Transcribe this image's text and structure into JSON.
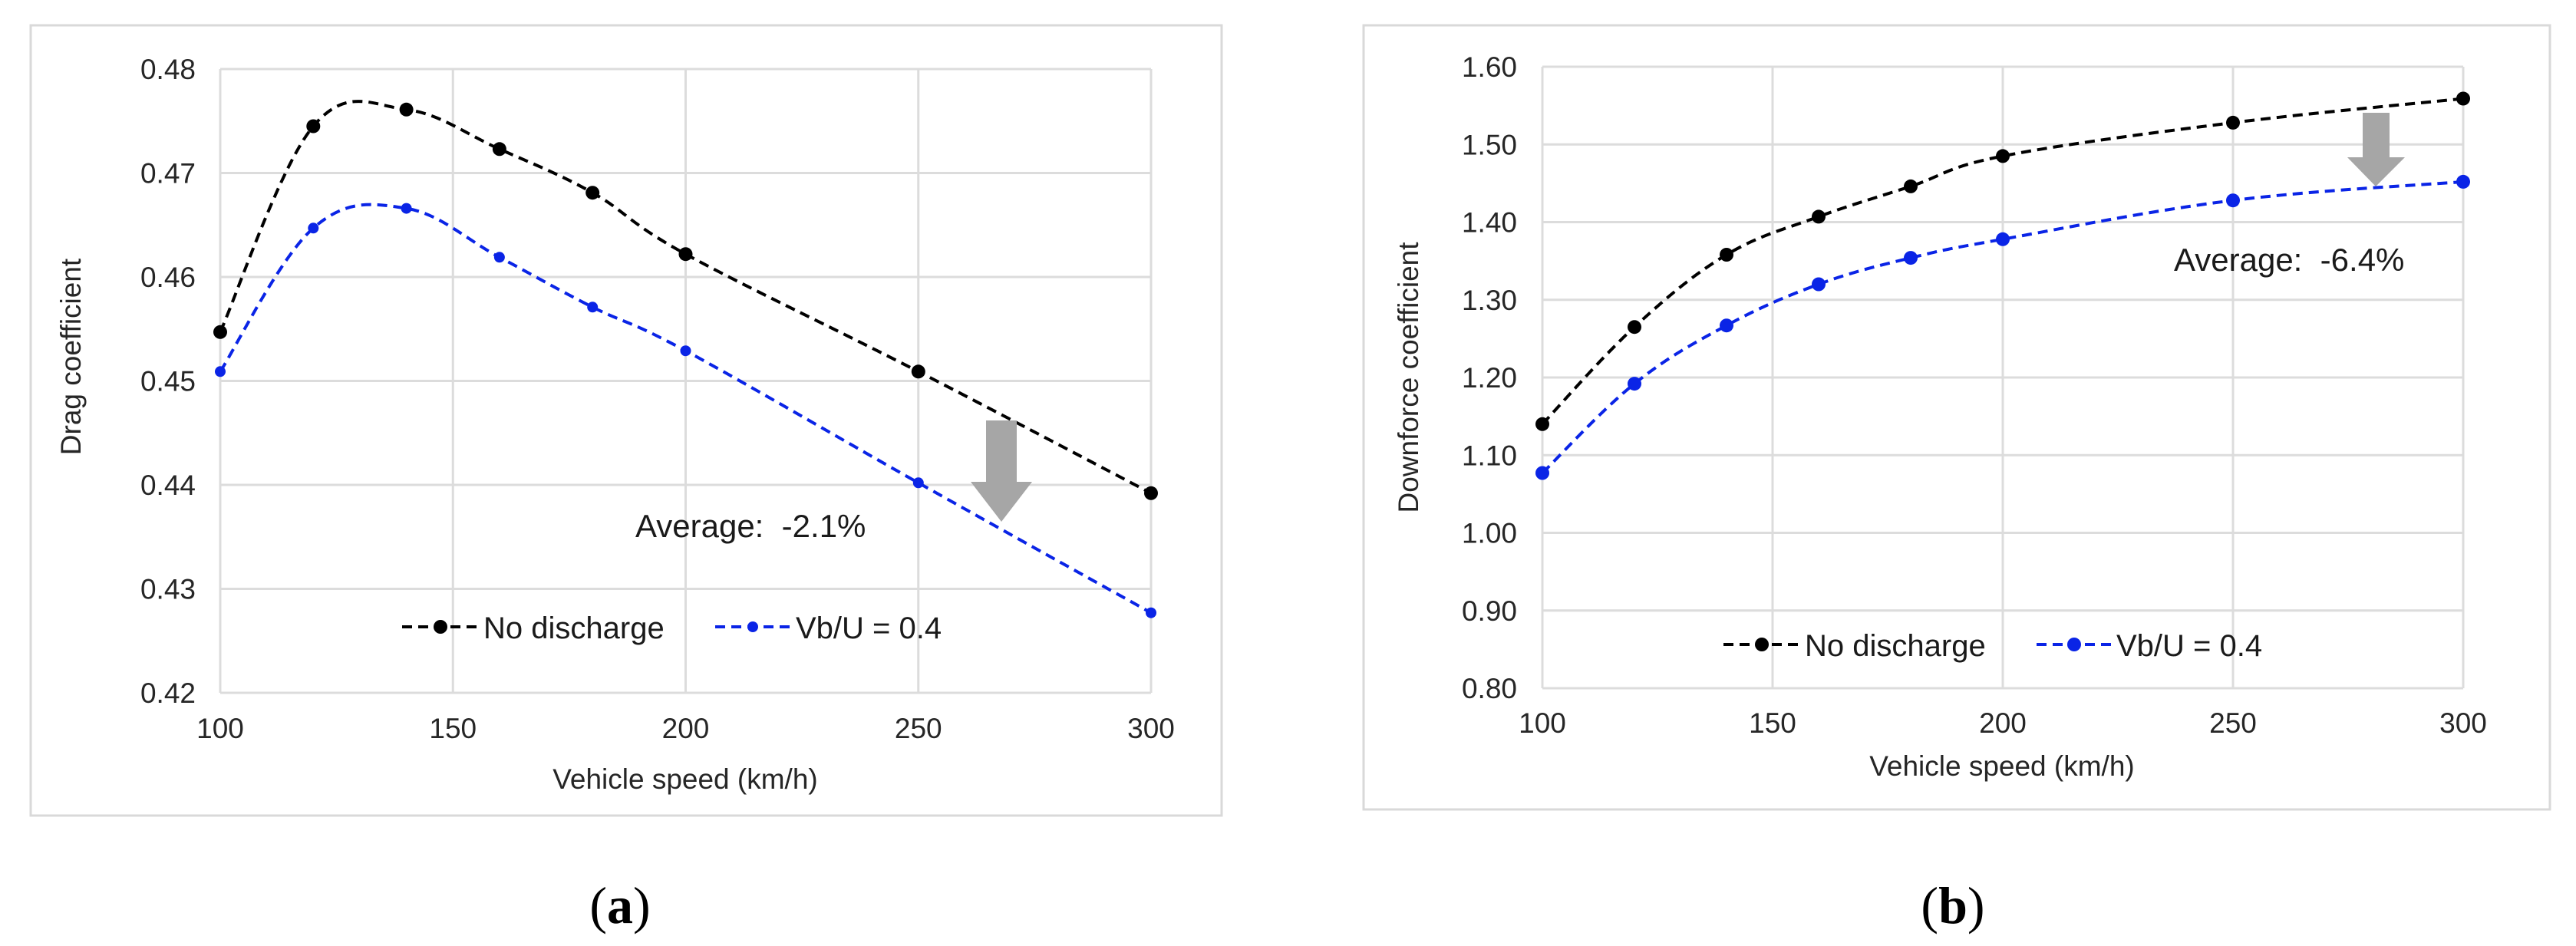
{
  "chart_data": [
    {
      "type": "line",
      "panel_label": "a",
      "x": [
        100,
        120,
        140,
        160,
        180,
        200,
        250,
        300
      ],
      "series": [
        {
          "name": "No discharge",
          "values": [
            0.4547,
            0.4745,
            0.4761,
            0.4723,
            0.4681,
            0.4622,
            0.4509,
            0.4392
          ]
        },
        {
          "name": "Vb/U = 0.4",
          "values": [
            0.4509,
            0.4647,
            0.4666,
            0.4619,
            0.4571,
            0.4529,
            0.4402,
            0.4277
          ]
        }
      ],
      "title": "",
      "xlabel": "Vehicle speed (km/h)",
      "ylabel": "Drag coefficient",
      "xlim": [
        100,
        300
      ],
      "ylim": [
        0.42,
        0.48
      ],
      "xticks": [
        "100",
        "150",
        "200",
        "250",
        "300"
      ],
      "yticks": [
        "0.42",
        "0.43",
        "0.44",
        "0.45",
        "0.46",
        "0.47",
        "0.48"
      ],
      "grid": true,
      "legend_position": "bottom-center",
      "annotation": "Average:  -2.1%"
    },
    {
      "type": "line",
      "panel_label": "b",
      "x": [
        100,
        120,
        140,
        160,
        180,
        200,
        250,
        300
      ],
      "series": [
        {
          "name": "No discharge",
          "values": [
            1.14,
            1.265,
            1.358,
            1.407,
            1.446,
            1.485,
            1.528,
            1.559
          ]
        },
        {
          "name": "Vb/U = 0.4",
          "values": [
            1.077,
            1.192,
            1.267,
            1.32,
            1.354,
            1.378,
            1.428,
            1.452
          ]
        }
      ],
      "title": "",
      "xlabel": "Vehicle speed (km/h)",
      "ylabel": "Downforce coefficient",
      "xlim": [
        100,
        300
      ],
      "ylim": [
        0.8,
        1.6
      ],
      "xticks": [
        "100",
        "150",
        "200",
        "250",
        "300"
      ],
      "yticks": [
        "0.80",
        "0.90",
        "1.00",
        "1.10",
        "1.20",
        "1.30",
        "1.40",
        "1.50",
        "1.60"
      ],
      "grid": true,
      "legend_position": "bottom-center",
      "annotation": "Average:  -6.4%"
    }
  ],
  "colors": {
    "no_discharge": "#000000",
    "vbu": "#0a24e6",
    "arrow": "#a6a6a6",
    "grid": "#dcdcdc"
  }
}
